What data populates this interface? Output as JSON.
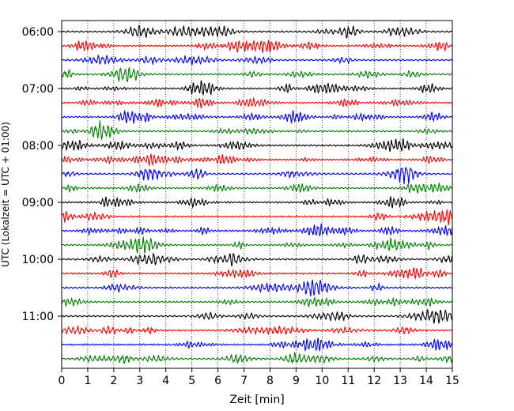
{
  "chart_data": {
    "type": "line",
    "xlabel": "Zeit  [min]",
    "ylabel": "UTC (Lokalzeit = UTC + 01:00)",
    "xlim": [
      0,
      15
    ],
    "x_ticks": [
      "0",
      "1",
      "2",
      "3",
      "4",
      "5",
      "6",
      "7",
      "8",
      "9",
      "10",
      "11",
      "12",
      "13",
      "14",
      "15"
    ],
    "y_tick_labels": [
      "06:00",
      "07:00",
      "08:00",
      "09:00",
      "10:00",
      "11:00"
    ],
    "grid": "vertical dotted lines at each minute",
    "trace_interval_minutes": 15,
    "trace_start": "06:00",
    "trace_count": 24,
    "colors": [
      "#000000",
      "#ff0000",
      "#0000ff",
      "#007f00"
    ],
    "series_note": "helicorder: each row is a 15-minute seismometer trace, colors cycle black, red, blue, green"
  }
}
